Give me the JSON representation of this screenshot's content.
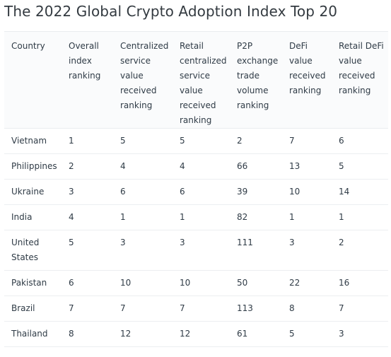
{
  "title": "The 2022 Global Crypto Adoption Index Top 20",
  "table": {
    "headers": [
      "Country",
      "Overall index ranking",
      "Centralized service value received ranking",
      "Retail centralized service value received ranking",
      "P2P exchange trade volume ranking",
      "DeFi value received ranking",
      "Retail DeFi value received ranking"
    ],
    "rows": [
      [
        "Vietnam",
        "1",
        "5",
        "5",
        "2",
        "7",
        "6"
      ],
      [
        "Philippines",
        "2",
        "4",
        "4",
        "66",
        "13",
        "5"
      ],
      [
        "Ukraine",
        "3",
        "6",
        "6",
        "39",
        "10",
        "14"
      ],
      [
        "India",
        "4",
        "1",
        "1",
        "82",
        "1",
        "1"
      ],
      [
        "United States",
        "5",
        "3",
        "3",
        "111",
        "3",
        "2"
      ],
      [
        "Pakistan",
        "6",
        "10",
        "10",
        "50",
        "22",
        "16"
      ],
      [
        "Brazil",
        "7",
        "7",
        "7",
        "113",
        "8",
        "7"
      ],
      [
        "Thailand",
        "8",
        "12",
        "12",
        "61",
        "5",
        "3"
      ]
    ]
  }
}
